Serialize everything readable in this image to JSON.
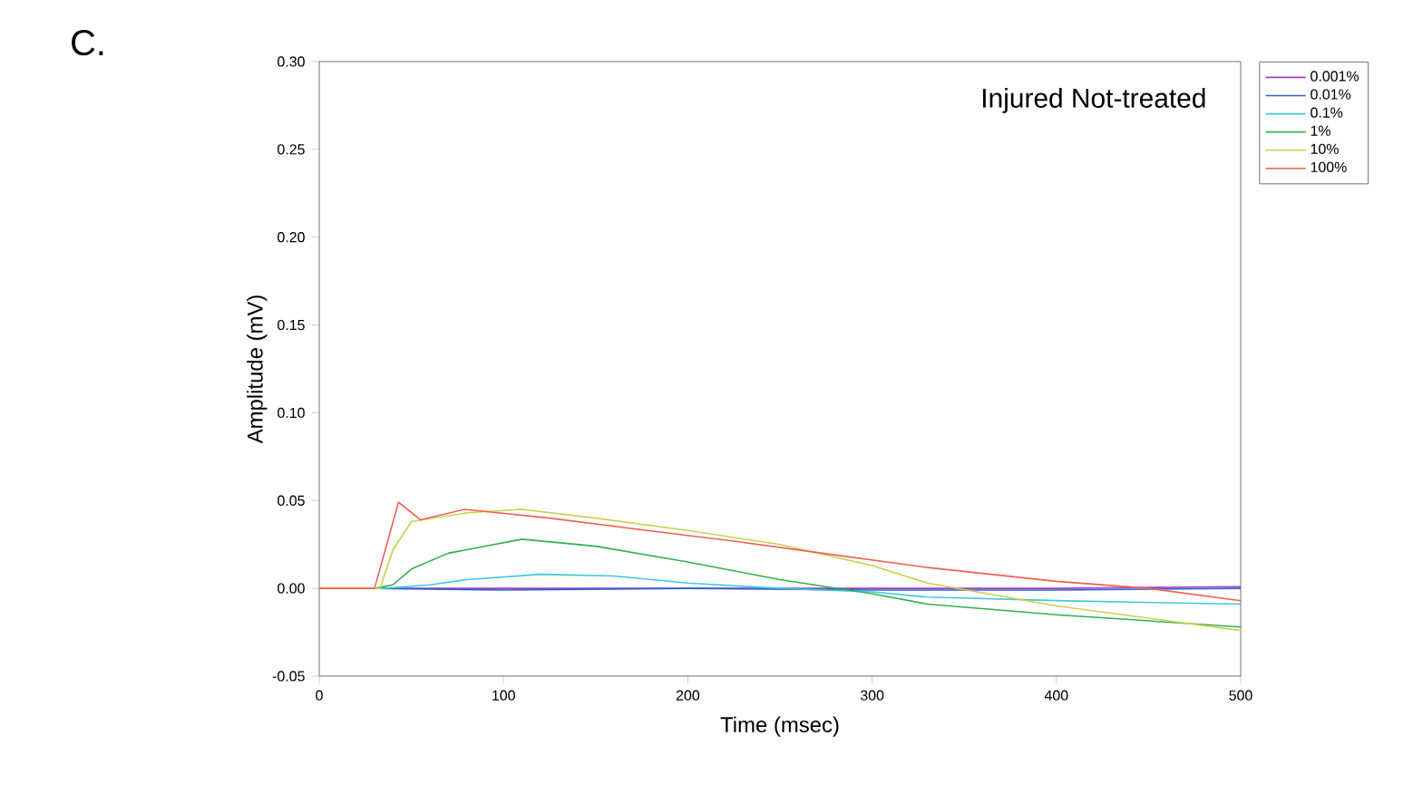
{
  "chart_data": {
    "type": "line",
    "title": "Injured Not-treated",
    "annotations": [
      "C."
    ],
    "xlabel": "Time (msec)",
    "ylabel": "Amplitude (mV)",
    "xlim": [
      0,
      500
    ],
    "xticks": [
      0,
      100,
      200,
      300,
      400,
      500
    ],
    "ylim": [
      -0.05,
      0.3
    ],
    "yticks": [
      {
        "value": -0.05,
        "label": "-0.05"
      },
      {
        "value": 0,
        "label": "0.00"
      },
      {
        "value": 0.05,
        "label": "0.05"
      },
      {
        "value": 0.1,
        "label": "0.10"
      },
      {
        "value": 0.15,
        "label": "0.15"
      },
      {
        "value": 0.2,
        "label": "0.20"
      },
      {
        "value": 0.25,
        "label": "0.25"
      },
      {
        "value": 0.3,
        "label": "0.30"
      }
    ],
    "legend": "top right",
    "marker": "none",
    "line_style": "solid",
    "grid": false,
    "series": [
      {
        "name": "0.001%",
        "color": "#a040c0",
        "x": [
          0,
          30,
          100,
          200,
          300,
          400,
          500
        ],
        "values": [
          0,
          0,
          0,
          0,
          0,
          0,
          0.001
        ]
      },
      {
        "name": "0.01%",
        "color": "#3060d0",
        "x": [
          0,
          30,
          100,
          200,
          300,
          400,
          500
        ],
        "values": [
          0,
          0,
          -0.001,
          0,
          -0.001,
          -0.001,
          0
        ]
      },
      {
        "name": "0.1%",
        "color": "#40c8d8",
        "x": [
          0,
          35,
          60,
          80,
          120,
          160,
          200,
          250,
          300,
          330,
          400,
          500
        ],
        "values": [
          0,
          0,
          0.002,
          0.005,
          0.008,
          0.007,
          0.003,
          0,
          -0.002,
          -0.005,
          -0.007,
          -0.009
        ]
      },
      {
        "name": "1%",
        "color": "#30b050",
        "x": [
          0,
          30,
          40,
          50,
          70,
          110,
          150,
          200,
          250,
          300,
          330,
          400,
          500
        ],
        "values": [
          0,
          0,
          0.002,
          0.011,
          0.02,
          0.028,
          0.024,
          0.015,
          0.005,
          -0.003,
          -0.009,
          -0.015,
          -0.022
        ]
      },
      {
        "name": "10%",
        "color": "#c8d050",
        "x": [
          0,
          33,
          40,
          50,
          80,
          110,
          150,
          200,
          250,
          300,
          330,
          400,
          500
        ],
        "values": [
          0,
          0,
          0.022,
          0.038,
          0.043,
          0.045,
          0.04,
          0.033,
          0.025,
          0.013,
          0.003,
          -0.01,
          -0.024
        ]
      },
      {
        "name": "100%",
        "color": "#f06050",
        "x": [
          0,
          30,
          43,
          55,
          79,
          125,
          178,
          224,
          273,
          329,
          400,
          450,
          500
        ],
        "values": [
          0,
          0,
          0.049,
          0.039,
          0.045,
          0.04,
          0.033,
          0.027,
          0.02,
          0.012,
          0.004,
          0,
          -0.007
        ]
      }
    ]
  }
}
